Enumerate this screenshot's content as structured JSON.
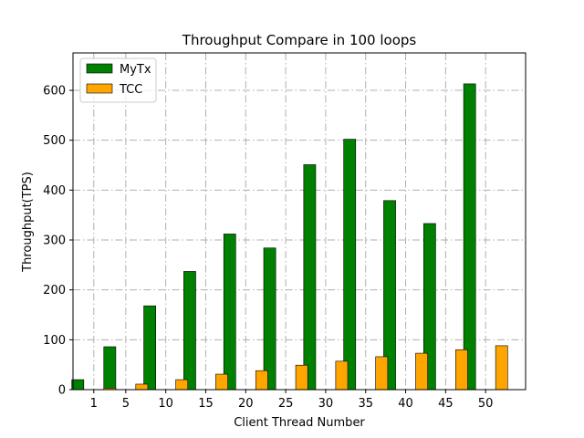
{
  "chart_data": {
    "type": "bar",
    "title": "Throughput Compare in 100 loops",
    "xlabel": "Client Thread Number",
    "ylabel": "Throughput(TPS)",
    "categories": [
      "1",
      "5",
      "10",
      "15",
      "20",
      "25",
      "30",
      "35",
      "40",
      "45",
      "50"
    ],
    "x": [
      1,
      5,
      10,
      15,
      20,
      25,
      30,
      35,
      40,
      45,
      50
    ],
    "xlim": [
      -1.6,
      55.0
    ],
    "ylim": [
      0,
      675
    ],
    "yticks": [
      0,
      100,
      200,
      300,
      400,
      500,
      600
    ],
    "grid": true,
    "legend_position": "top-left",
    "series": [
      {
        "name": "MyTx",
        "color": "#008000",
        "values": [
          20,
          86,
          168,
          237,
          312,
          284,
          451,
          502,
          379,
          333,
          613
        ]
      },
      {
        "name": "TCC",
        "color": "#ffa500",
        "values": [
          3,
          11,
          20,
          31,
          38,
          49,
          57,
          66,
          73,
          80,
          88
        ]
      }
    ]
  }
}
